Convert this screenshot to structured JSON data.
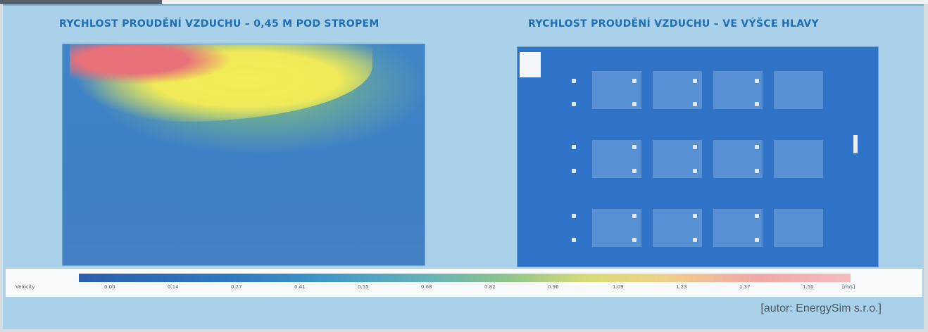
{
  "titles": {
    "left": "RYCHLOST PROUDĚNÍ VZDUCHU – 0,45 M POD STROPEM",
    "right": "RYCHLOST PROUDĚNÍ VZDUCHU – VE VÝŠCE HLAVY"
  },
  "scale": {
    "label": "Velocity",
    "ticks": [
      "0.00",
      "0.14",
      "0.27",
      "0.41",
      "0.55",
      "0.68",
      "0.82",
      "0.96",
      "1.09",
      "1.23",
      "1.37",
      "1.50"
    ],
    "unit": "[m/s]"
  },
  "credit": "[autor: EnergySim s.r.o.]",
  "colors": {
    "panel_bg": "#a9d2ea",
    "title": "#1f6db3",
    "low_velocity": "#2c5fae",
    "mid_velocity": "#8bc48d",
    "high_velocity": "#f2ee55",
    "max_velocity": "#e8717a"
  }
}
